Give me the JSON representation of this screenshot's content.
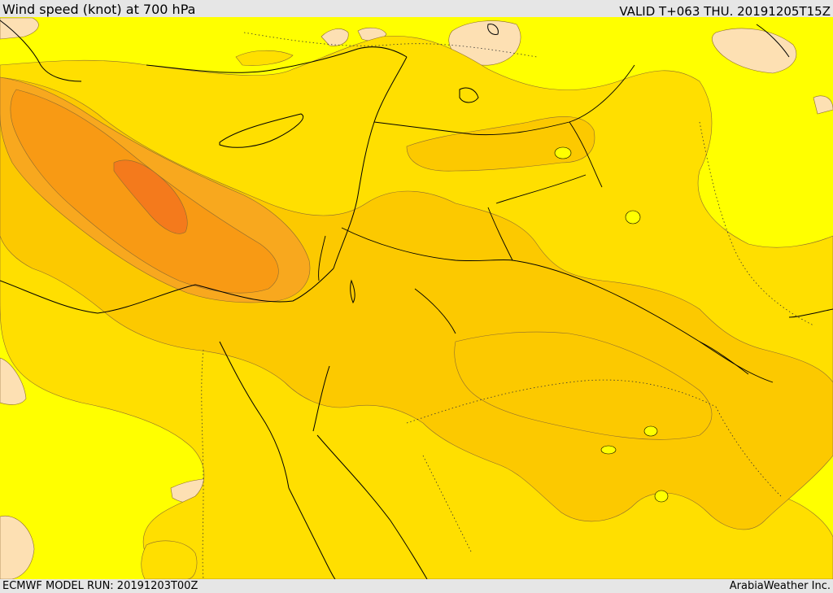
{
  "header": {
    "title": "Wind speed (knot) at 700 hPa",
    "valid_time": "VALID T+063 THU. 20191205T15Z"
  },
  "footer": {
    "model_run": "ECMWF MODEL RUN: 20191203T00Z",
    "credit": "ArabiaWeather Inc."
  },
  "colors": {
    "bg": "#ffff00",
    "band_low": "#fde0b3",
    "band_1": "#ffdf00",
    "band_2": "#fcc900",
    "band_3": "#f8a81e",
    "band_4": "#f89a14",
    "band_5": "#f47a1c",
    "contour": "#8c6a30",
    "coast": "#000000"
  }
}
